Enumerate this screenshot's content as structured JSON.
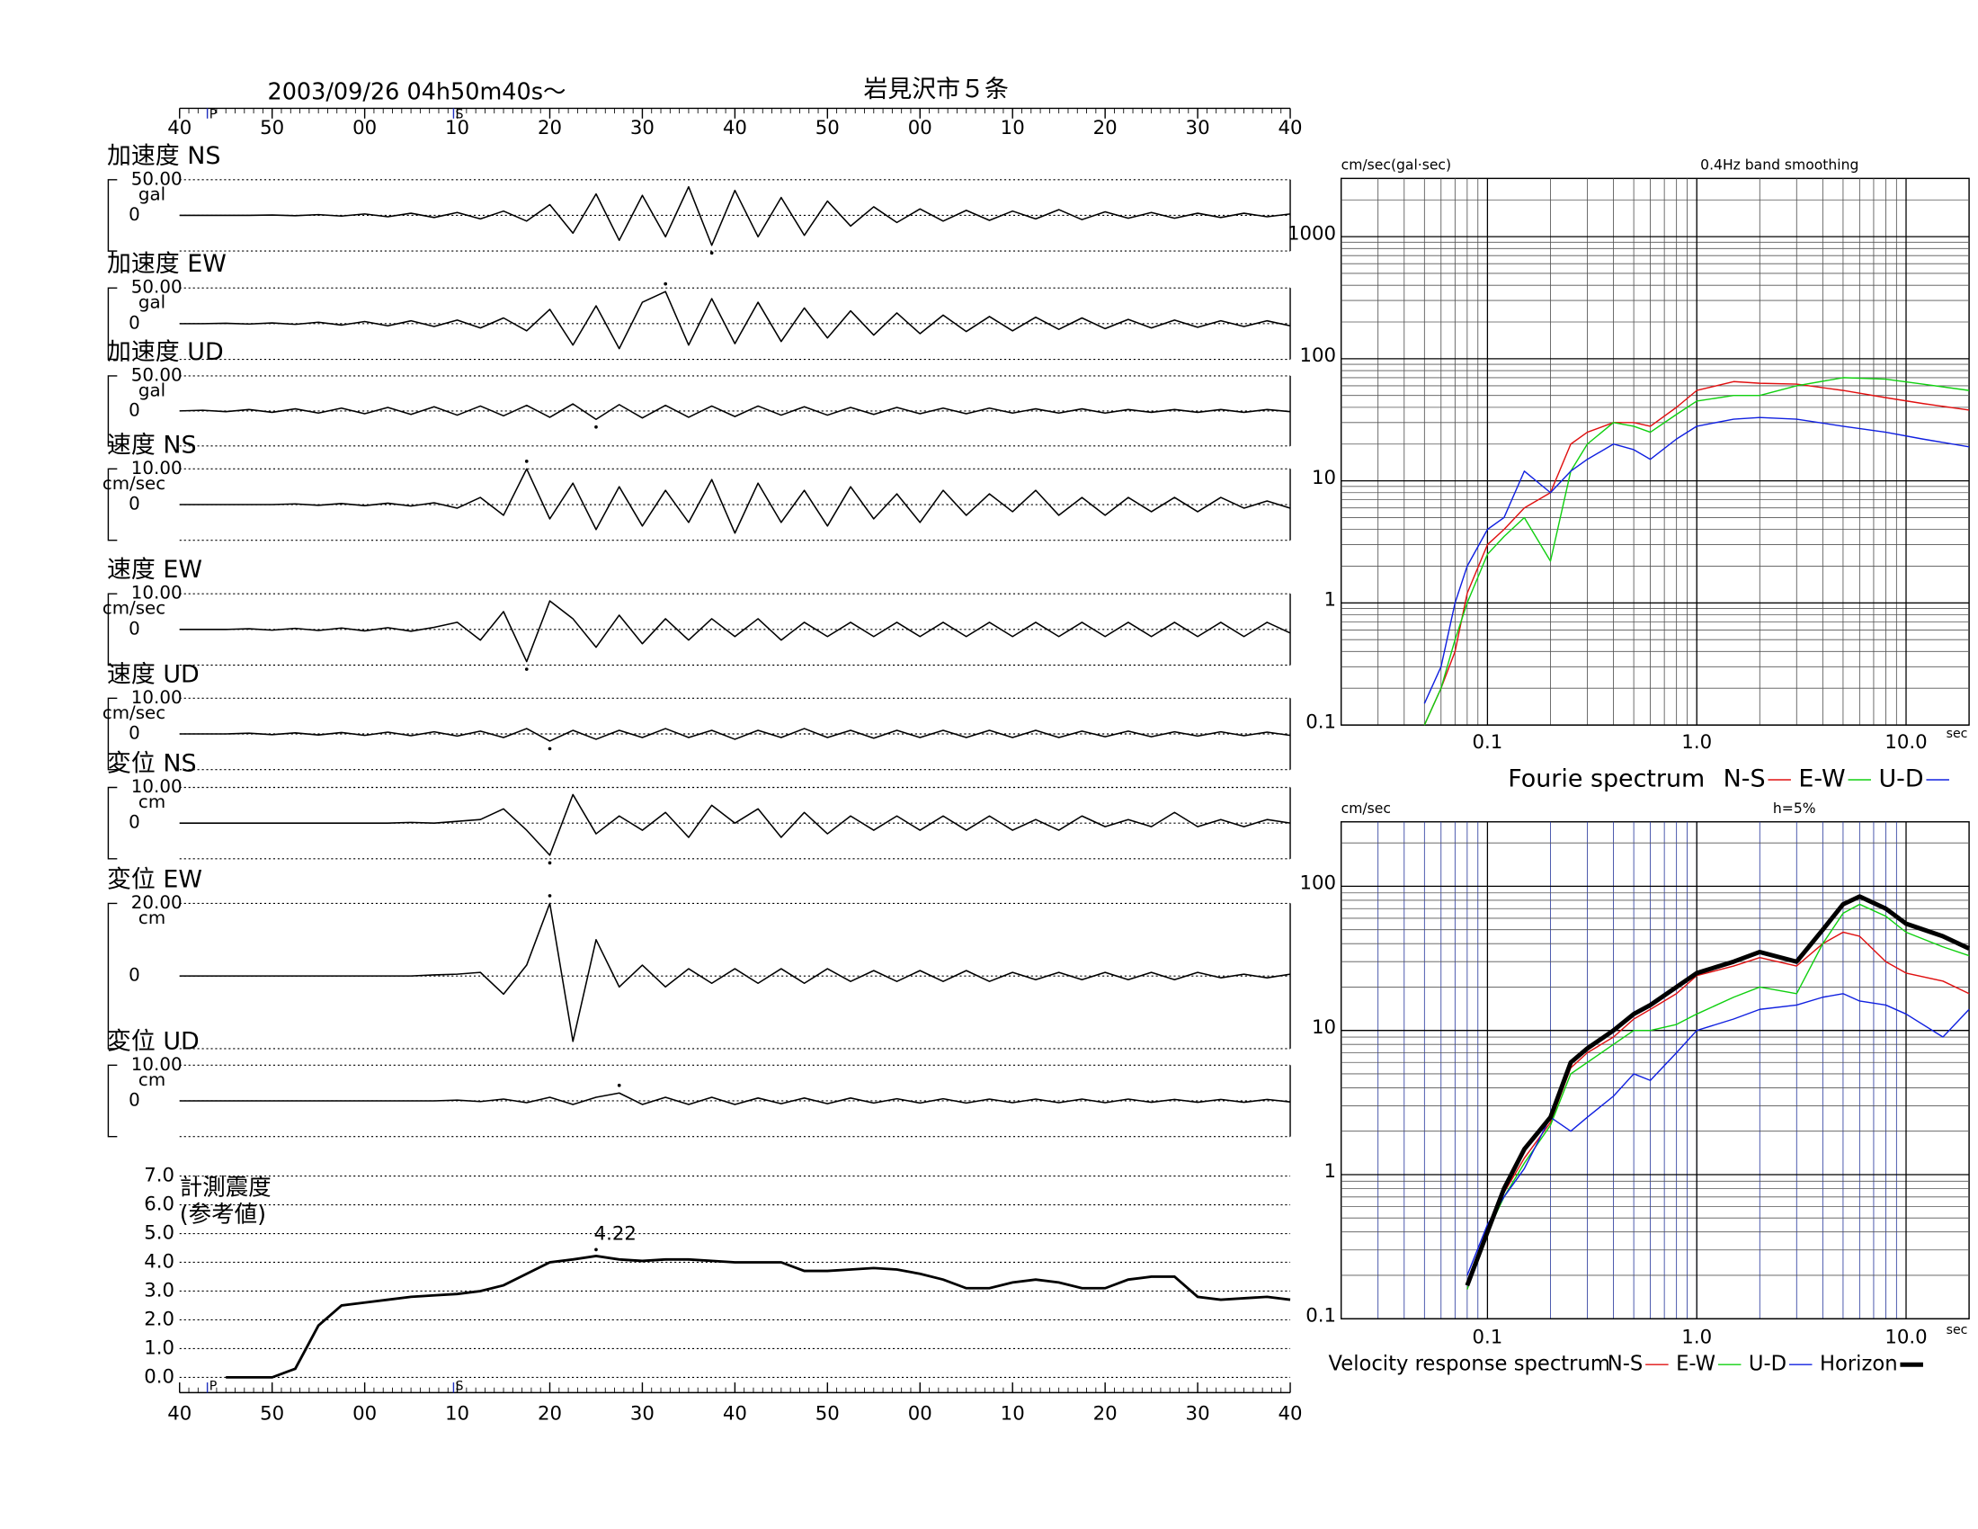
{
  "chart_data": [
    {
      "type": "line",
      "title": "2003/09/26  04h50m40s〜",
      "subtitle": "岩見沢市５条",
      "color": "#000000",
      "xlim": [
        0,
        120
      ],
      "xticks": [
        {
          "value": 0,
          "label": "40"
        },
        {
          "value": 10,
          "label": "50"
        },
        {
          "value": 20,
          "label": "00"
        },
        {
          "value": 30,
          "label": "10"
        },
        {
          "value": 40,
          "label": "20"
        },
        {
          "value": 50,
          "label": "30"
        },
        {
          "value": 60,
          "label": "40"
        },
        {
          "value": 70,
          "label": "50"
        },
        {
          "value": 80,
          "label": "00"
        },
        {
          "value": 90,
          "label": "10"
        },
        {
          "value": 100,
          "label": "20"
        },
        {
          "value": 110,
          "label": "30"
        },
        {
          "value": 120,
          "label": "40"
        }
      ],
      "markers": [
        {
          "label": "P",
          "value": 3,
          "color": "#2030c0"
        },
        {
          "label": "S",
          "value": 29.6,
          "color": "#2030c0"
        }
      ],
      "x": [
        0,
        2.5,
        5,
        7.5,
        10,
        12.5,
        15,
        17.5,
        20,
        22.5,
        25,
        27.5,
        30,
        32.5,
        35,
        37.5,
        40,
        42.5,
        45,
        47.5,
        50,
        52.5,
        55,
        57.5,
        60,
        62.5,
        65,
        67.5,
        70,
        72.5,
        75,
        77.5,
        80,
        82.5,
        85,
        87.5,
        90,
        92.5,
        95,
        97.5,
        100,
        102.5,
        105,
        107.5,
        110,
        112.5,
        115,
        117.5,
        120
      ],
      "rows": [
        {
          "name": "加速度 NS",
          "unit": "gal",
          "ylim": [
            -50,
            50
          ],
          "yticks": [
            {
              "value": 50,
              "label": "50.00"
            },
            0
          ],
          "values": [
            0,
            0,
            0,
            0,
            0.5,
            -0.5,
            1,
            -1,
            2,
            -2,
            3,
            -3,
            4,
            -5,
            6,
            -8,
            15,
            -25,
            30,
            -35,
            28,
            -30,
            40,
            -42,
            35,
            -30,
            25,
            -28,
            20,
            -15,
            12,
            -10,
            9,
            -8,
            7,
            -7,
            6,
            -5,
            8,
            -6,
            5,
            -4,
            4,
            -4,
            3,
            -3,
            3,
            -2,
            2
          ]
        },
        {
          "name": "加速度 EW",
          "unit": "gal",
          "ylim": [
            -50,
            50
          ],
          "yticks": [
            {
              "value": 50,
              "label": "50.00"
            },
            0
          ],
          "values": [
            0,
            0,
            0.5,
            -0.5,
            1,
            -1,
            2,
            -2,
            3,
            -3,
            4,
            -4,
            5,
            -6,
            8,
            -10,
            20,
            -30,
            25,
            -35,
            30,
            45,
            -30,
            35,
            -28,
            30,
            -25,
            22,
            -20,
            18,
            -16,
            15,
            -14,
            12,
            -11,
            10,
            -10,
            9,
            -8,
            8,
            -7,
            6,
            -6,
            5,
            -5,
            4,
            -4,
            4,
            -3
          ]
        },
        {
          "name": "加速度 UD",
          "unit": "gal",
          "ylim": [
            -50,
            50
          ],
          "yticks": [
            {
              "value": 50,
              "label": "50.00"
            },
            0
          ],
          "values": [
            0,
            1,
            -1,
            2,
            -2,
            3,
            -3,
            4,
            -4,
            5,
            -5,
            6,
            -6,
            7,
            -7,
            8,
            -9,
            10,
            -12,
            9,
            -10,
            8,
            -9,
            7,
            -8,
            7,
            -6,
            6,
            -6,
            5,
            -5,
            5,
            -4,
            4,
            -4,
            4,
            -3,
            3,
            -3,
            3,
            -3,
            2,
            -2,
            2,
            -2,
            2,
            -2,
            2,
            -1
          ]
        },
        {
          "name": "速度 NS",
          "unit": "cm/sec",
          "ylim": [
            -10,
            10
          ],
          "yticks": [
            {
              "value": 10,
              "label": "10.00"
            },
            0
          ],
          "values": [
            0,
            0,
            0,
            0,
            0,
            0.2,
            -0.2,
            0.3,
            -0.3,
            0.4,
            -0.4,
            0.5,
            -1,
            2,
            -3,
            10,
            -4,
            6,
            -7,
            5,
            -6,
            4,
            -5,
            7,
            -8,
            6,
            -5,
            4,
            -6,
            5,
            -4,
            3,
            -5,
            4,
            -3,
            3,
            -2,
            4,
            -3,
            2,
            -3,
            2,
            -2,
            2,
            -2,
            2,
            -1,
            1,
            -1
          ]
        },
        {
          "name": "速度 EW",
          "unit": "cm/sec",
          "ylim": [
            -10,
            10
          ],
          "yticks": [
            {
              "value": 10,
              "label": "10.00"
            },
            0
          ],
          "values": [
            0,
            0,
            0,
            0.2,
            -0.2,
            0.3,
            -0.3,
            0.4,
            -0.4,
            0.5,
            -0.5,
            0.6,
            2,
            -3,
            5,
            -9,
            8,
            3,
            -5,
            4,
            -4,
            3,
            -3,
            3,
            -2,
            3,
            -3,
            2,
            -2,
            2,
            -2,
            2,
            -2,
            2,
            -2,
            2,
            -2,
            2,
            -2,
            2,
            -2,
            2,
            -2,
            2,
            -2,
            2,
            -2,
            2,
            -1
          ]
        },
        {
          "name": "速度 UD",
          "unit": "cm/sec",
          "ylim": [
            -10,
            10
          ],
          "yticks": [
            {
              "value": 10,
              "label": "10.00"
            },
            0
          ],
          "values": [
            0,
            0,
            0,
            0.2,
            -0.2,
            0.3,
            -0.3,
            0.4,
            -0.4,
            0.5,
            -0.5,
            0.6,
            -0.6,
            0.8,
            -1,
            1.5,
            -2,
            1,
            -1.5,
            1,
            -1,
            1.5,
            -1,
            1,
            -1.5,
            1,
            -1,
            1.5,
            -1,
            1,
            -1.2,
            1,
            -1,
            1,
            -1,
            1,
            -1,
            1,
            -1,
            0.8,
            -0.8,
            0.8,
            -0.8,
            0.6,
            -0.6,
            0.6,
            -0.5,
            0.5,
            -0.4
          ]
        },
        {
          "name": "変位 NS",
          "unit": "cm",
          "ylim": [
            -10,
            10
          ],
          "yticks": [
            {
              "value": 10,
              "label": "10.00"
            },
            0
          ],
          "values": [
            0,
            0,
            0,
            0,
            0,
            0,
            0,
            0,
            0,
            0,
            0.2,
            0,
            0.5,
            1,
            4,
            -2,
            -9,
            8,
            -3,
            2,
            -2,
            3,
            -4,
            5,
            0,
            4,
            -4,
            3,
            -3,
            2,
            -2,
            2,
            -2,
            2,
            -2,
            2,
            -2,
            1,
            -2,
            2,
            -1,
            1,
            -1,
            3,
            -1,
            1,
            -1,
            1,
            0
          ]
        },
        {
          "name": "変位 EW",
          "unit": "cm",
          "ylim": [
            -20,
            20
          ],
          "yticks": [
            {
              "value": 20,
              "label": "20.00"
            },
            0
          ],
          "values": [
            0,
            0,
            0,
            0,
            0,
            0,
            0,
            0,
            0,
            0,
            0,
            0.3,
            0.5,
            1,
            -5,
            3,
            20,
            -18,
            10,
            -3,
            3,
            -3,
            2,
            -2,
            2,
            -2,
            2,
            -2,
            2,
            -1.5,
            1.5,
            -1.5,
            1.5,
            -1.5,
            1.5,
            -1.5,
            1,
            -1,
            1,
            -1,
            1,
            -1,
            1,
            -1,
            1,
            -0.5,
            0.5,
            -0.5,
            0.5
          ]
        },
        {
          "name": "変位 UD",
          "unit": "cm",
          "ylim": [
            -10,
            10
          ],
          "yticks": [
            {
              "value": 10,
              "label": "10.00"
            },
            0
          ],
          "values": [
            0,
            0,
            0,
            0,
            0,
            0,
            0,
            0,
            0,
            0,
            0,
            0,
            0.2,
            -0.2,
            0.5,
            -0.5,
            1,
            -1,
            1,
            2.2,
            -1,
            1,
            -1,
            1,
            -1,
            0.8,
            -0.8,
            0.8,
            -0.8,
            0.8,
            -0.6,
            0.6,
            -0.6,
            0.6,
            -0.6,
            0.5,
            -0.5,
            0.5,
            -0.5,
            0.5,
            -0.5,
            0.5,
            -0.4,
            0.4,
            -0.4,
            0.4,
            -0.4,
            0.4,
            -0.3
          ]
        }
      ],
      "intensity": {
        "label": "計測震度",
        "note": "(参考値)",
        "ylim": [
          0,
          7
        ],
        "yticks": [
          {
            "value": 0,
            "label": "0.0"
          },
          {
            "value": 1,
            "label": "1.0"
          },
          {
            "value": 2,
            "label": "2.0"
          },
          {
            "value": 3,
            "label": "3.0"
          },
          {
            "value": 4,
            "label": "4.0"
          },
          {
            "value": 5,
            "label": "5.0"
          },
          {
            "value": 6,
            "label": "6.0"
          },
          {
            "value": 7,
            "label": "7.0"
          }
        ],
        "values": [
          null,
          null,
          0,
          0,
          0,
          0.3,
          1.8,
          2.5,
          2.6,
          2.7,
          2.8,
          2.85,
          2.9,
          3.0,
          3.2,
          3.6,
          4.0,
          4.1,
          4.22,
          4.1,
          4.05,
          4.1,
          4.1,
          4.05,
          4.0,
          4.0,
          4.0,
          3.7,
          3.7,
          3.75,
          3.8,
          3.75,
          3.6,
          3.4,
          3.1,
          3.1,
          3.3,
          3.4,
          3.3,
          3.1,
          3.1,
          3.4,
          3.5,
          3.5,
          2.8,
          2.7,
          2.75,
          2.8,
          2.7
        ]
      }
    },
    {
      "type": "line",
      "title": "Fourie spectrum",
      "y_label": "cm/sec(gal·sec)",
      "note": "0.4Hz band smoothing",
      "x_label": "sec",
      "log_x": true,
      "log_y": true,
      "grid": true,
      "grid_color": "#555555",
      "xlim": [
        0.02,
        20
      ],
      "ylim": [
        0.1,
        3000
      ],
      "xticks": [
        0.1,
        {
          "value": 1,
          "label": "1.0"
        },
        {
          "value": 10,
          "label": "10.0"
        }
      ],
      "yticks": [
        0.1,
        1,
        10,
        100,
        1000
      ],
      "x": [
        0.05,
        0.06,
        0.07,
        0.08,
        0.1,
        0.12,
        0.15,
        0.2,
        0.25,
        0.3,
        0.4,
        0.5,
        0.6,
        0.8,
        1,
        1.5,
        2,
        3,
        5,
        8,
        12,
        20
      ],
      "series": [
        {
          "name": "N-S",
          "color": "#e01010",
          "width": 1,
          "values": [
            0.1,
            0.2,
            0.4,
            1.2,
            3,
            4,
            6,
            8,
            20,
            25,
            30,
            30,
            28,
            40,
            55,
            65,
            63,
            62,
            55,
            48,
            43,
            38
          ]
        },
        {
          "name": "E-W",
          "color": "#10d010",
          "width": 1,
          "values": [
            0.1,
            0.2,
            0.5,
            1,
            2.5,
            3.5,
            5,
            2.2,
            12,
            20,
            30,
            28,
            25,
            35,
            45,
            50,
            50,
            60,
            70,
            68,
            62,
            55
          ]
        },
        {
          "name": "U-D",
          "color": "#1020e0",
          "width": 1,
          "values": [
            0.15,
            0.3,
            1,
            2,
            4,
            5,
            12,
            8,
            12,
            15,
            20,
            18,
            15,
            22,
            28,
            32,
            33,
            32,
            28,
            25,
            22,
            19
          ]
        }
      ]
    },
    {
      "type": "line",
      "title": "Velocity response spectrum",
      "y_label": "cm/sec",
      "note": "h=5%",
      "x_label": "sec",
      "log_x": true,
      "log_y": true,
      "grid": true,
      "grid_color": "#3040a0",
      "xlim": [
        0.02,
        20
      ],
      "ylim": [
        0.1,
        280
      ],
      "xticks": [
        0.1,
        {
          "value": 1,
          "label": "1.0"
        },
        {
          "value": 10,
          "label": "10.0"
        }
      ],
      "yticks": [
        0.1,
        1,
        10,
        100
      ],
      "x": [
        0.08,
        0.1,
        0.12,
        0.15,
        0.2,
        0.25,
        0.3,
        0.4,
        0.5,
        0.6,
        0.8,
        1,
        1.5,
        2,
        3,
        4,
        5,
        6,
        8,
        10,
        15,
        20
      ],
      "series": [
        {
          "name": "N-S",
          "color": "#e01010",
          "width": 1,
          "values": [
            0.16,
            0.4,
            0.75,
            1.3,
            2.3,
            5.5,
            7,
            9,
            12,
            14,
            18,
            24,
            28,
            32,
            28,
            40,
            48,
            45,
            30,
            25,
            22,
            18
          ]
        },
        {
          "name": "E-W",
          "color": "#10d010",
          "width": 1,
          "values": [
            0.16,
            0.4,
            0.7,
            1.2,
            2.2,
            5,
            6,
            8,
            10,
            10,
            11,
            13,
            17,
            20,
            18,
            40,
            65,
            75,
            62,
            48,
            38,
            33
          ]
        },
        {
          "name": "U-D",
          "color": "#1020e0",
          "width": 1,
          "values": [
            0.2,
            0.45,
            0.7,
            1.1,
            2.5,
            2,
            2.5,
            3.5,
            5,
            4.5,
            7,
            10,
            12,
            14,
            15,
            17,
            18,
            16,
            15,
            13,
            9,
            14
          ]
        },
        {
          "name": "Horizon",
          "color": "#000000",
          "width": 3.5,
          "values": [
            0.17,
            0.4,
            0.8,
            1.5,
            2.5,
            6,
            7.5,
            10,
            13,
            15,
            20,
            25,
            30,
            35,
            30,
            50,
            75,
            85,
            70,
            55,
            45,
            37
          ]
        }
      ]
    }
  ]
}
